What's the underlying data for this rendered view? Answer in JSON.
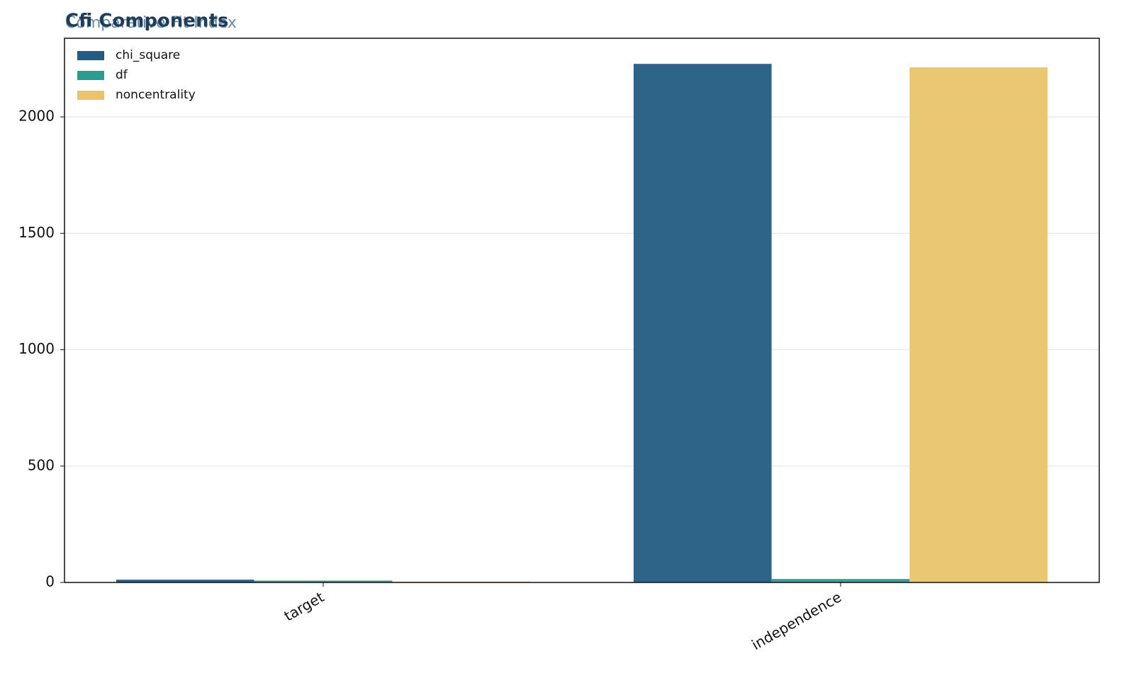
{
  "chart_data": {
    "type": "bar",
    "title": "Cfi Components",
    "subtitle": "Comparative Fit Index",
    "categories": [
      "target",
      "independence"
    ],
    "series": [
      {
        "name": "chi_square",
        "color": "#225c82",
        "values": [
          12,
          2228
        ]
      },
      {
        "name": "df",
        "color": "#2a9d8f",
        "values": [
          8,
          15
        ]
      },
      {
        "name": "noncentrality",
        "color": "#e9c46a",
        "values": [
          4,
          2213
        ]
      }
    ],
    "ylim": [
      0,
      2338
    ],
    "yticks": [
      0,
      500,
      1000,
      1500,
      2000
    ],
    "grid": true,
    "legend": "upper-left"
  }
}
